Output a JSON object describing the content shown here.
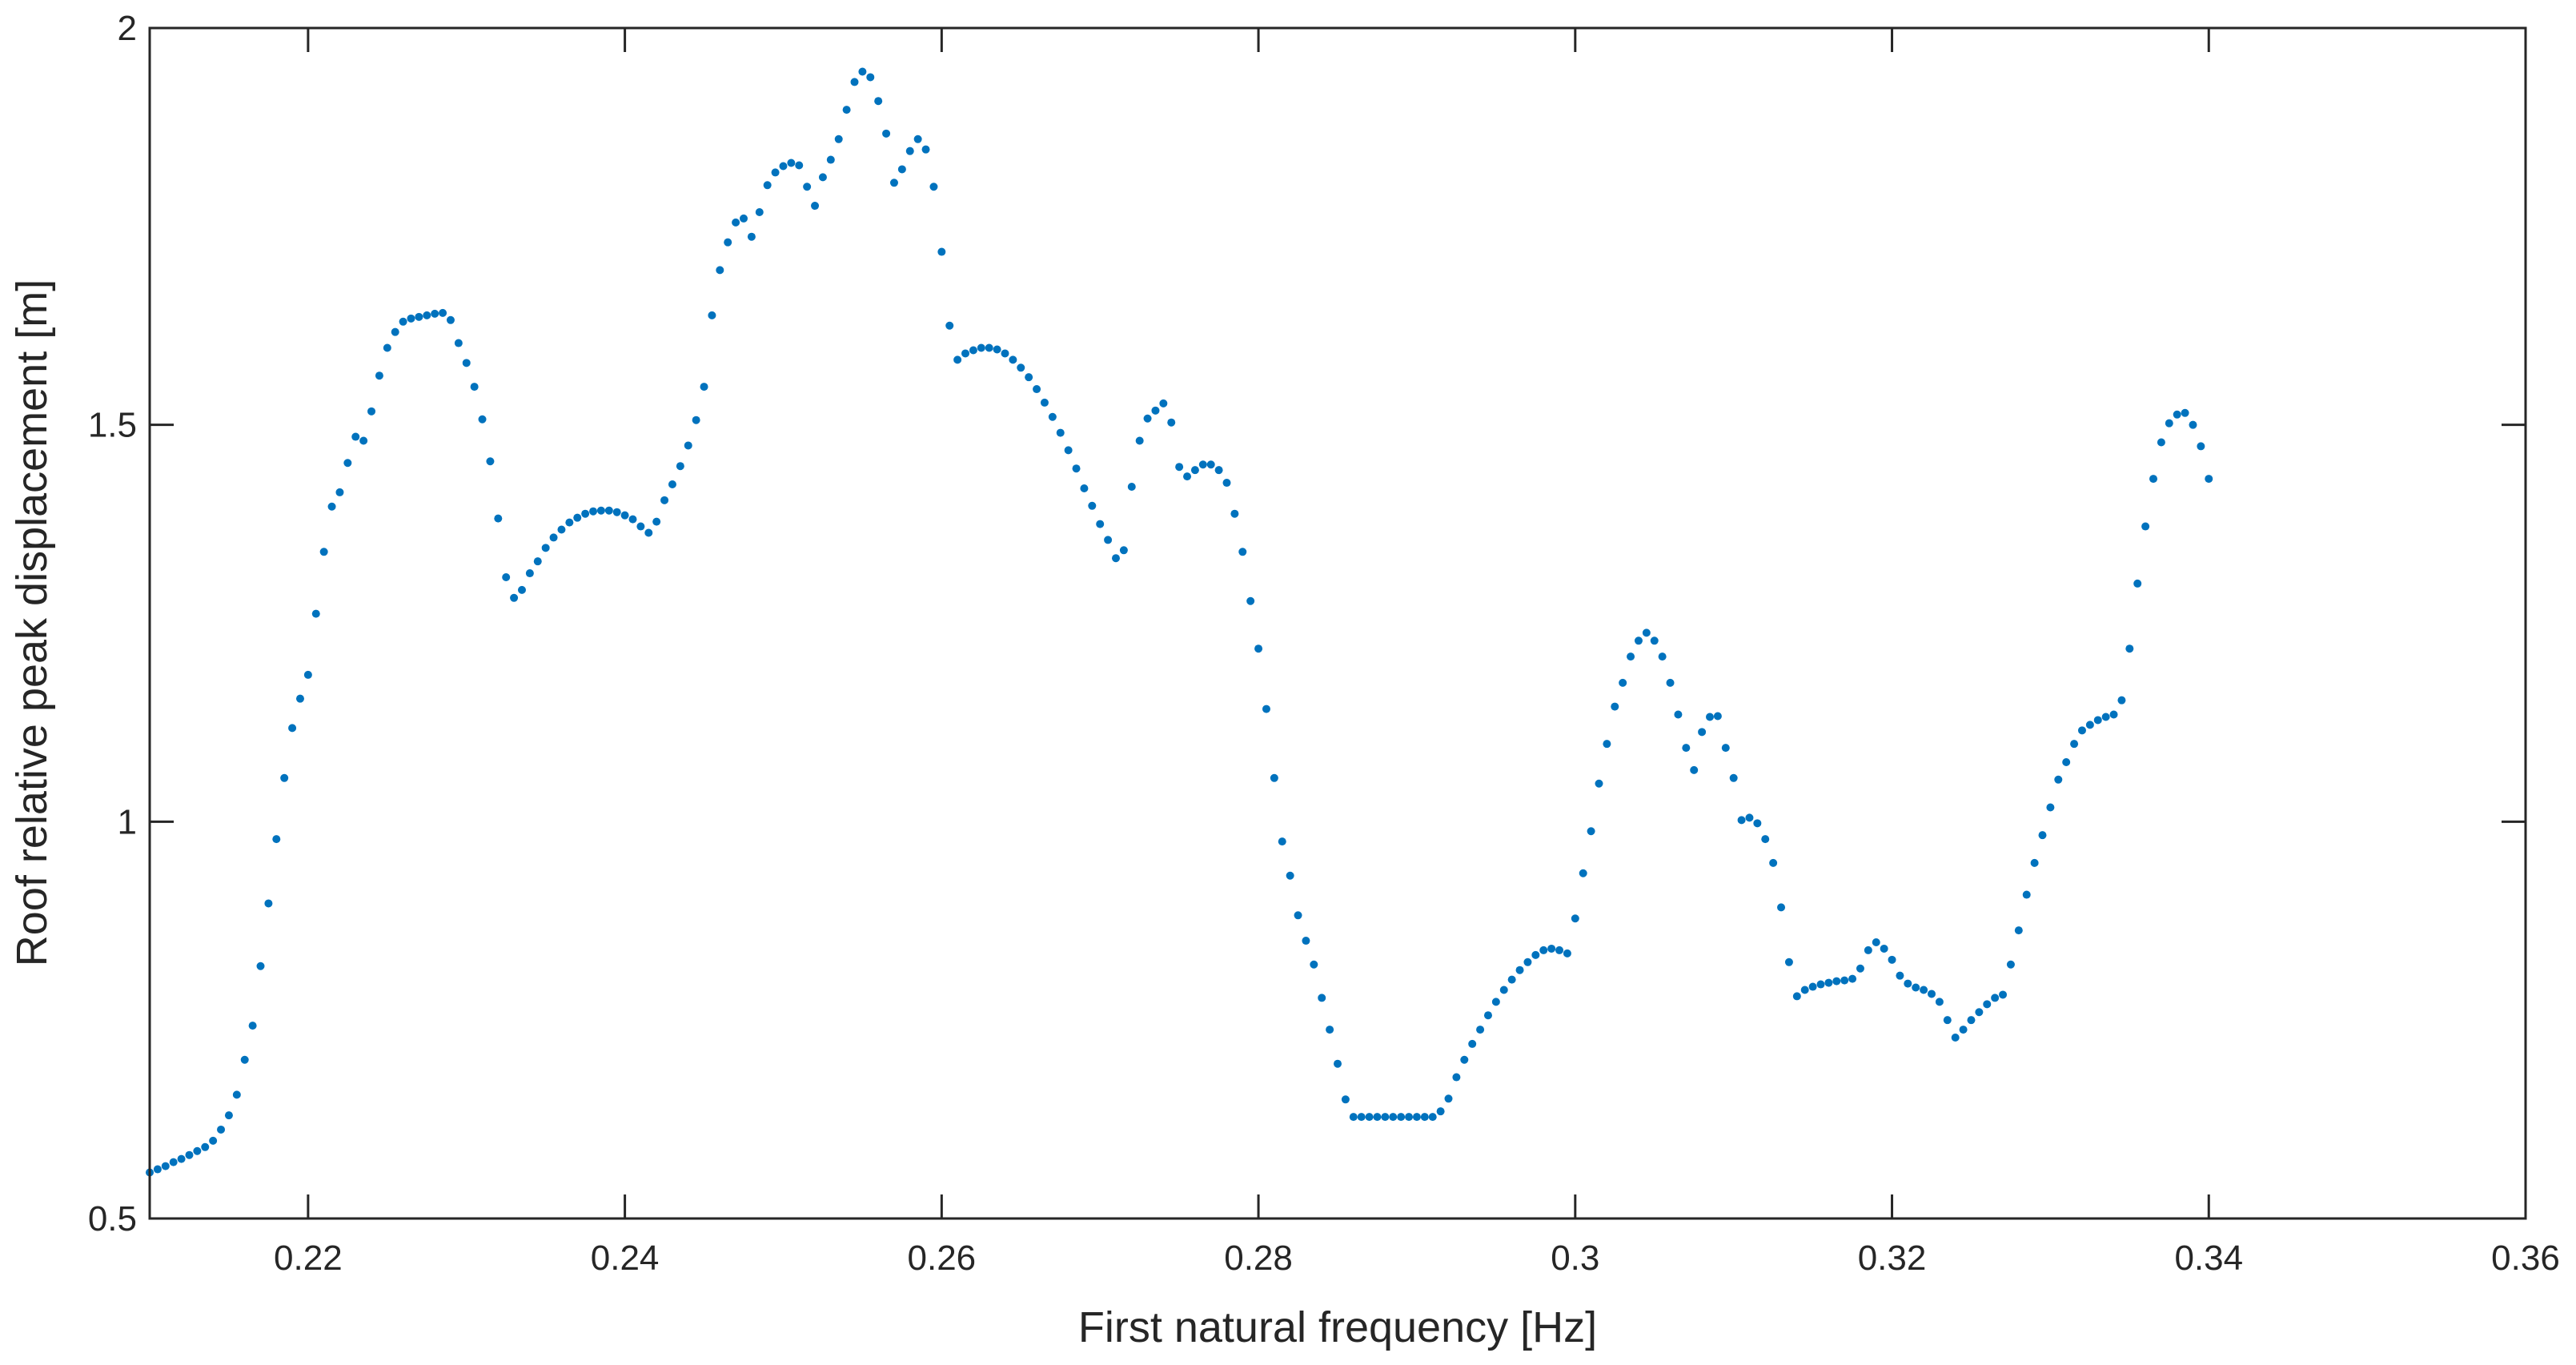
{
  "chart_data": {
    "type": "scatter",
    "title": "",
    "xlabel": "First natural frequency [Hz]",
    "ylabel": "Roof relative peak displacement [m]",
    "xlim": [
      0.21,
      0.36
    ],
    "ylim": [
      0.5,
      2
    ],
    "xticks": [
      0.22,
      0.24,
      0.26,
      0.28,
      0.3,
      0.32,
      0.34,
      0.36
    ],
    "xtick_labels": [
      "0.22",
      "0.24",
      "0.26",
      "0.28",
      "0.3",
      "0.32",
      "0.34",
      "0.36"
    ],
    "yticks": [
      0.5,
      1,
      1.5,
      2
    ],
    "ytick_labels": [
      "0.5",
      "1",
      "1.5",
      "2"
    ],
    "grid": false,
    "legend": "none",
    "marker_color": "#0072BD",
    "series": [
      {
        "points": [
          [
            0.21,
            0.558
          ],
          [
            0.2105,
            0.562
          ],
          [
            0.211,
            0.566
          ],
          [
            0.2115,
            0.571
          ],
          [
            0.212,
            0.575
          ],
          [
            0.2125,
            0.58
          ],
          [
            0.213,
            0.585
          ],
          [
            0.2135,
            0.59
          ],
          [
            0.214,
            0.598
          ],
          [
            0.2145,
            0.612
          ],
          [
            0.215,
            0.63
          ],
          [
            0.2155,
            0.656
          ],
          [
            0.216,
            0.7
          ],
          [
            0.2165,
            0.743
          ],
          [
            0.217,
            0.818
          ],
          [
            0.2175,
            0.897
          ],
          [
            0.218,
            0.978
          ],
          [
            0.2185,
            1.055
          ],
          [
            0.219,
            1.118
          ],
          [
            0.2195,
            1.155
          ],
          [
            0.22,
            1.185
          ],
          [
            0.2205,
            1.262
          ],
          [
            0.221,
            1.34
          ],
          [
            0.2215,
            1.397
          ],
          [
            0.222,
            1.415
          ],
          [
            0.2225,
            1.452
          ],
          [
            0.223,
            1.485
          ],
          [
            0.2235,
            1.48
          ],
          [
            0.224,
            1.517
          ],
          [
            0.2245,
            1.562
          ],
          [
            0.225,
            1.597
          ],
          [
            0.2255,
            1.617
          ],
          [
            0.226,
            1.63
          ],
          [
            0.2265,
            1.634
          ],
          [
            0.227,
            1.636
          ],
          [
            0.2275,
            1.638
          ],
          [
            0.228,
            1.64
          ],
          [
            0.2285,
            1.641
          ],
          [
            0.229,
            1.632
          ],
          [
            0.2295,
            1.603
          ],
          [
            0.23,
            1.578
          ],
          [
            0.2305,
            1.548
          ],
          [
            0.231,
            1.507
          ],
          [
            0.2315,
            1.454
          ],
          [
            0.232,
            1.382
          ],
          [
            0.2325,
            1.308
          ],
          [
            0.233,
            1.282
          ],
          [
            0.2335,
            1.292
          ],
          [
            0.234,
            1.313
          ],
          [
            0.2345,
            1.328
          ],
          [
            0.235,
            1.345
          ],
          [
            0.2355,
            1.358
          ],
          [
            0.236,
            1.368
          ],
          [
            0.2365,
            1.377
          ],
          [
            0.237,
            1.383
          ],
          [
            0.2375,
            1.388
          ],
          [
            0.238,
            1.391
          ],
          [
            0.2385,
            1.392
          ],
          [
            0.239,
            1.392
          ],
          [
            0.2395,
            1.39
          ],
          [
            0.24,
            1.386
          ],
          [
            0.2405,
            1.381
          ],
          [
            0.241,
            1.372
          ],
          [
            0.2415,
            1.364
          ],
          [
            0.242,
            1.378
          ],
          [
            0.2425,
            1.405
          ],
          [
            0.243,
            1.425
          ],
          [
            0.2435,
            1.448
          ],
          [
            0.244,
            1.474
          ],
          [
            0.2445,
            1.506
          ],
          [
            0.245,
            1.548
          ],
          [
            0.2455,
            1.638
          ],
          [
            0.246,
            1.695
          ],
          [
            0.2465,
            1.73
          ],
          [
            0.247,
            1.755
          ],
          [
            0.2475,
            1.76
          ],
          [
            0.248,
            1.737
          ],
          [
            0.2485,
            1.768
          ],
          [
            0.249,
            1.802
          ],
          [
            0.2495,
            1.818
          ],
          [
            0.25,
            1.826
          ],
          [
            0.2505,
            1.83
          ],
          [
            0.251,
            1.827
          ],
          [
            0.2515,
            1.8
          ],
          [
            0.252,
            1.776
          ],
          [
            0.2525,
            1.812
          ],
          [
            0.253,
            1.834
          ],
          [
            0.2535,
            1.86
          ],
          [
            0.254,
            1.897
          ],
          [
            0.2545,
            1.932
          ],
          [
            0.255,
            1.945
          ],
          [
            0.2555,
            1.938
          ],
          [
            0.256,
            1.908
          ],
          [
            0.2565,
            1.867
          ],
          [
            0.257,
            1.805
          ],
          [
            0.2575,
            1.822
          ],
          [
            0.258,
            1.845
          ],
          [
            0.2585,
            1.86
          ],
          [
            0.259,
            1.847
          ],
          [
            0.2595,
            1.8
          ],
          [
            0.26,
            1.718
          ],
          [
            0.2605,
            1.625
          ],
          [
            0.261,
            1.582
          ],
          [
            0.2615,
            1.59
          ],
          [
            0.262,
            1.594
          ],
          [
            0.2625,
            1.597
          ],
          [
            0.263,
            1.597
          ],
          [
            0.2635,
            1.595
          ],
          [
            0.264,
            1.59
          ],
          [
            0.2645,
            1.582
          ],
          [
            0.265,
            1.572
          ],
          [
            0.2655,
            1.56
          ],
          [
            0.266,
            1.545
          ],
          [
            0.2665,
            1.528
          ],
          [
            0.267,
            1.51
          ],
          [
            0.2675,
            1.49
          ],
          [
            0.268,
            1.468
          ],
          [
            0.2685,
            1.445
          ],
          [
            0.269,
            1.42
          ],
          [
            0.2695,
            1.398
          ],
          [
            0.27,
            1.375
          ],
          [
            0.2705,
            1.355
          ],
          [
            0.271,
            1.332
          ],
          [
            0.2715,
            1.342
          ],
          [
            0.272,
            1.422
          ],
          [
            0.2725,
            1.48
          ],
          [
            0.273,
            1.508
          ],
          [
            0.2735,
            1.518
          ],
          [
            0.274,
            1.527
          ],
          [
            0.2745,
            1.503
          ],
          [
            0.275,
            1.447
          ],
          [
            0.2755,
            1.435
          ],
          [
            0.276,
            1.443
          ],
          [
            0.2765,
            1.45
          ],
          [
            0.277,
            1.45
          ],
          [
            0.2775,
            1.443
          ],
          [
            0.278,
            1.427
          ],
          [
            0.2785,
            1.388
          ],
          [
            0.279,
            1.34
          ],
          [
            0.2795,
            1.278
          ],
          [
            0.28,
            1.218
          ],
          [
            0.2805,
            1.142
          ],
          [
            0.281,
            1.055
          ],
          [
            0.2815,
            0.975
          ],
          [
            0.282,
            0.932
          ],
          [
            0.2825,
            0.882
          ],
          [
            0.283,
            0.85
          ],
          [
            0.2835,
            0.82
          ],
          [
            0.284,
            0.778
          ],
          [
            0.2845,
            0.738
          ],
          [
            0.285,
            0.695
          ],
          [
            0.2855,
            0.65
          ],
          [
            0.286,
            0.628
          ],
          [
            0.2865,
            0.628
          ],
          [
            0.287,
            0.628
          ],
          [
            0.2875,
            0.628
          ],
          [
            0.288,
            0.628
          ],
          [
            0.2885,
            0.628
          ],
          [
            0.289,
            0.628
          ],
          [
            0.2895,
            0.628
          ],
          [
            0.29,
            0.628
          ],
          [
            0.2905,
            0.628
          ],
          [
            0.291,
            0.628
          ],
          [
            0.2915,
            0.635
          ],
          [
            0.292,
            0.651
          ],
          [
            0.2925,
            0.678
          ],
          [
            0.293,
            0.7
          ],
          [
            0.2935,
            0.72
          ],
          [
            0.294,
            0.738
          ],
          [
            0.2945,
            0.756
          ],
          [
            0.295,
            0.773
          ],
          [
            0.2955,
            0.788
          ],
          [
            0.296,
            0.801
          ],
          [
            0.2965,
            0.813
          ],
          [
            0.297,
            0.823
          ],
          [
            0.2975,
            0.832
          ],
          [
            0.298,
            0.838
          ],
          [
            0.2985,
            0.84
          ],
          [
            0.299,
            0.838
          ],
          [
            0.2995,
            0.834
          ],
          [
            0.3,
            0.878
          ],
          [
            0.3005,
            0.935
          ],
          [
            0.301,
            0.988
          ],
          [
            0.3015,
            1.048
          ],
          [
            0.302,
            1.098
          ],
          [
            0.3025,
            1.145
          ],
          [
            0.303,
            1.175
          ],
          [
            0.3035,
            1.208
          ],
          [
            0.304,
            1.228
          ],
          [
            0.3045,
            1.238
          ],
          [
            0.305,
            1.228
          ],
          [
            0.3055,
            1.208
          ],
          [
            0.306,
            1.175
          ],
          [
            0.3065,
            1.135
          ],
          [
            0.307,
            1.093
          ],
          [
            0.3075,
            1.065
          ],
          [
            0.308,
            1.113
          ],
          [
            0.3085,
            1.132
          ],
          [
            0.309,
            1.133
          ],
          [
            0.3095,
            1.093
          ],
          [
            0.31,
            1.055
          ],
          [
            0.3105,
            1.002
          ],
          [
            0.311,
            1.005
          ],
          [
            0.3115,
            0.998
          ],
          [
            0.312,
            0.978
          ],
          [
            0.3125,
            0.948
          ],
          [
            0.313,
            0.892
          ],
          [
            0.3135,
            0.823
          ],
          [
            0.314,
            0.78
          ],
          [
            0.3145,
            0.788
          ],
          [
            0.315,
            0.792
          ],
          [
            0.3155,
            0.795
          ],
          [
            0.316,
            0.797
          ],
          [
            0.3165,
            0.799
          ],
          [
            0.317,
            0.8
          ],
          [
            0.3175,
            0.802
          ],
          [
            0.318,
            0.815
          ],
          [
            0.3185,
            0.838
          ],
          [
            0.319,
            0.848
          ],
          [
            0.3195,
            0.84
          ],
          [
            0.32,
            0.826
          ],
          [
            0.3205,
            0.806
          ],
          [
            0.321,
            0.796
          ],
          [
            0.3215,
            0.791
          ],
          [
            0.322,
            0.788
          ],
          [
            0.3225,
            0.783
          ],
          [
            0.323,
            0.773
          ],
          [
            0.3235,
            0.75
          ],
          [
            0.324,
            0.728
          ],
          [
            0.3245,
            0.738
          ],
          [
            0.325,
            0.75
          ],
          [
            0.3255,
            0.76
          ],
          [
            0.326,
            0.77
          ],
          [
            0.3265,
            0.778
          ],
          [
            0.327,
            0.782
          ],
          [
            0.3275,
            0.82
          ],
          [
            0.328,
            0.863
          ],
          [
            0.3285,
            0.908
          ],
          [
            0.329,
            0.948
          ],
          [
            0.3295,
            0.983
          ],
          [
            0.33,
            1.018
          ],
          [
            0.3305,
            1.053
          ],
          [
            0.331,
            1.075
          ],
          [
            0.3315,
            1.098
          ],
          [
            0.332,
            1.115
          ],
          [
            0.3325,
            1.122
          ],
          [
            0.333,
            1.128
          ],
          [
            0.3335,
            1.132
          ],
          [
            0.334,
            1.135
          ],
          [
            0.3345,
            1.153
          ],
          [
            0.335,
            1.218
          ],
          [
            0.3355,
            1.3
          ],
          [
            0.336,
            1.372
          ],
          [
            0.3365,
            1.432
          ],
          [
            0.337,
            1.478
          ],
          [
            0.3375,
            1.502
          ],
          [
            0.338,
            1.513
          ],
          [
            0.3385,
            1.515
          ],
          [
            0.339,
            1.5
          ],
          [
            0.3395,
            1.473
          ],
          [
            0.34,
            1.432
          ]
        ]
      }
    ]
  }
}
